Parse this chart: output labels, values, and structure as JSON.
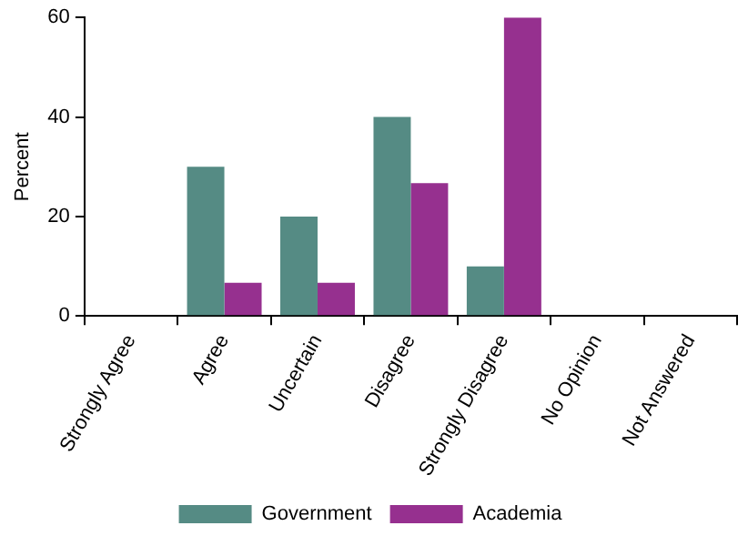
{
  "chart_data": {
    "type": "bar",
    "ylabel": "Percent",
    "categories": [
      "Strongly Agree",
      "Agree",
      "Uncertain",
      "Disagree",
      "Strongly Disagree",
      "No Opinion",
      "Not Answered"
    ],
    "series": [
      {
        "name": "Government",
        "color": "#558b84",
        "values": [
          0,
          30,
          20,
          40,
          10,
          0,
          0
        ]
      },
      {
        "name": "Academia",
        "color": "#96308f",
        "values": [
          0,
          6.7,
          6.7,
          26.7,
          60,
          0,
          0
        ]
      }
    ],
    "ylim": [
      0,
      60
    ],
    "yticks": [
      0,
      20,
      40,
      60
    ],
    "grid": false,
    "legend": "bottom"
  }
}
